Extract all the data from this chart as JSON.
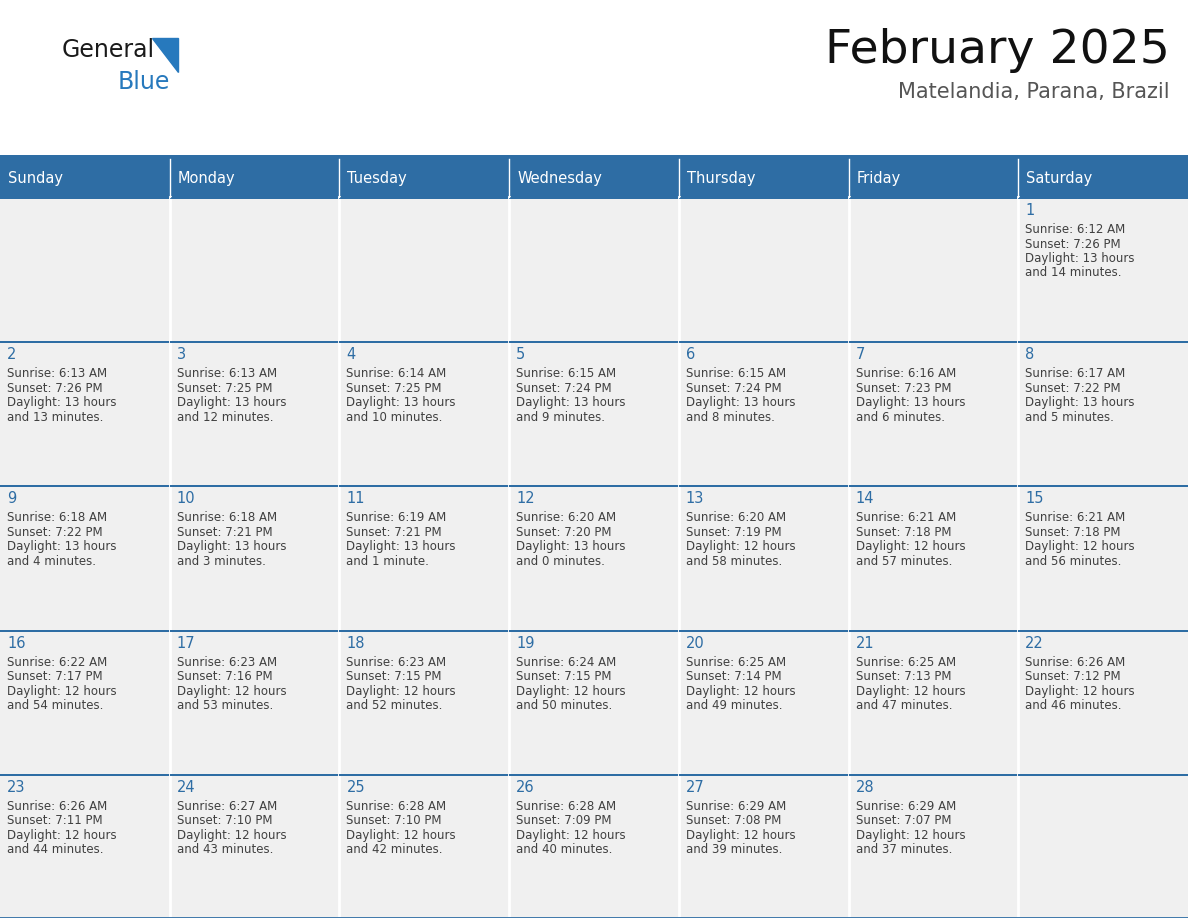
{
  "title": "February 2025",
  "subtitle": "Matelandia, Parana, Brazil",
  "header_color": "#2E6DA4",
  "header_text_color": "#FFFFFF",
  "border_color": "#2E6DA4",
  "day_names": [
    "Sunday",
    "Monday",
    "Tuesday",
    "Wednesday",
    "Thursday",
    "Friday",
    "Saturday"
  ],
  "bg_color": "#FFFFFF",
  "cell_bg": "#F0F0F0",
  "day_num_color": "#2E6DA4",
  "text_color": "#404040",
  "logo_general_color": "#1A1A1A",
  "logo_blue_color": "#2779BD",
  "weeks": [
    [
      null,
      null,
      null,
      null,
      null,
      null,
      1
    ],
    [
      2,
      3,
      4,
      5,
      6,
      7,
      8
    ],
    [
      9,
      10,
      11,
      12,
      13,
      14,
      15
    ],
    [
      16,
      17,
      18,
      19,
      20,
      21,
      22
    ],
    [
      23,
      24,
      25,
      26,
      27,
      28,
      null
    ]
  ],
  "day_data": {
    "1": {
      "sunrise": "6:12 AM",
      "sunset": "7:26 PM",
      "daylight_l1": "Daylight: 13 hours",
      "daylight_l2": "and 14 minutes."
    },
    "2": {
      "sunrise": "6:13 AM",
      "sunset": "7:26 PM",
      "daylight_l1": "Daylight: 13 hours",
      "daylight_l2": "and 13 minutes."
    },
    "3": {
      "sunrise": "6:13 AM",
      "sunset": "7:25 PM",
      "daylight_l1": "Daylight: 13 hours",
      "daylight_l2": "and 12 minutes."
    },
    "4": {
      "sunrise": "6:14 AM",
      "sunset": "7:25 PM",
      "daylight_l1": "Daylight: 13 hours",
      "daylight_l2": "and 10 minutes."
    },
    "5": {
      "sunrise": "6:15 AM",
      "sunset": "7:24 PM",
      "daylight_l1": "Daylight: 13 hours",
      "daylight_l2": "and 9 minutes."
    },
    "6": {
      "sunrise": "6:15 AM",
      "sunset": "7:24 PM",
      "daylight_l1": "Daylight: 13 hours",
      "daylight_l2": "and 8 minutes."
    },
    "7": {
      "sunrise": "6:16 AM",
      "sunset": "7:23 PM",
      "daylight_l1": "Daylight: 13 hours",
      "daylight_l2": "and 6 minutes."
    },
    "8": {
      "sunrise": "6:17 AM",
      "sunset": "7:22 PM",
      "daylight_l1": "Daylight: 13 hours",
      "daylight_l2": "and 5 minutes."
    },
    "9": {
      "sunrise": "6:18 AM",
      "sunset": "7:22 PM",
      "daylight_l1": "Daylight: 13 hours",
      "daylight_l2": "and 4 minutes."
    },
    "10": {
      "sunrise": "6:18 AM",
      "sunset": "7:21 PM",
      "daylight_l1": "Daylight: 13 hours",
      "daylight_l2": "and 3 minutes."
    },
    "11": {
      "sunrise": "6:19 AM",
      "sunset": "7:21 PM",
      "daylight_l1": "Daylight: 13 hours",
      "daylight_l2": "and 1 minute."
    },
    "12": {
      "sunrise": "6:20 AM",
      "sunset": "7:20 PM",
      "daylight_l1": "Daylight: 13 hours",
      "daylight_l2": "and 0 minutes."
    },
    "13": {
      "sunrise": "6:20 AM",
      "sunset": "7:19 PM",
      "daylight_l1": "Daylight: 12 hours",
      "daylight_l2": "and 58 minutes."
    },
    "14": {
      "sunrise": "6:21 AM",
      "sunset": "7:18 PM",
      "daylight_l1": "Daylight: 12 hours",
      "daylight_l2": "and 57 minutes."
    },
    "15": {
      "sunrise": "6:21 AM",
      "sunset": "7:18 PM",
      "daylight_l1": "Daylight: 12 hours",
      "daylight_l2": "and 56 minutes."
    },
    "16": {
      "sunrise": "6:22 AM",
      "sunset": "7:17 PM",
      "daylight_l1": "Daylight: 12 hours",
      "daylight_l2": "and 54 minutes."
    },
    "17": {
      "sunrise": "6:23 AM",
      "sunset": "7:16 PM",
      "daylight_l1": "Daylight: 12 hours",
      "daylight_l2": "and 53 minutes."
    },
    "18": {
      "sunrise": "6:23 AM",
      "sunset": "7:15 PM",
      "daylight_l1": "Daylight: 12 hours",
      "daylight_l2": "and 52 minutes."
    },
    "19": {
      "sunrise": "6:24 AM",
      "sunset": "7:15 PM",
      "daylight_l1": "Daylight: 12 hours",
      "daylight_l2": "and 50 minutes."
    },
    "20": {
      "sunrise": "6:25 AM",
      "sunset": "7:14 PM",
      "daylight_l1": "Daylight: 12 hours",
      "daylight_l2": "and 49 minutes."
    },
    "21": {
      "sunrise": "6:25 AM",
      "sunset": "7:13 PM",
      "daylight_l1": "Daylight: 12 hours",
      "daylight_l2": "and 47 minutes."
    },
    "22": {
      "sunrise": "6:26 AM",
      "sunset": "7:12 PM",
      "daylight_l1": "Daylight: 12 hours",
      "daylight_l2": "and 46 minutes."
    },
    "23": {
      "sunrise": "6:26 AM",
      "sunset": "7:11 PM",
      "daylight_l1": "Daylight: 12 hours",
      "daylight_l2": "and 44 minutes."
    },
    "24": {
      "sunrise": "6:27 AM",
      "sunset": "7:10 PM",
      "daylight_l1": "Daylight: 12 hours",
      "daylight_l2": "and 43 minutes."
    },
    "25": {
      "sunrise": "6:28 AM",
      "sunset": "7:10 PM",
      "daylight_l1": "Daylight: 12 hours",
      "daylight_l2": "and 42 minutes."
    },
    "26": {
      "sunrise": "6:28 AM",
      "sunset": "7:09 PM",
      "daylight_l1": "Daylight: 12 hours",
      "daylight_l2": "and 40 minutes."
    },
    "27": {
      "sunrise": "6:29 AM",
      "sunset": "7:08 PM",
      "daylight_l1": "Daylight: 12 hours",
      "daylight_l2": "and 39 minutes."
    },
    "28": {
      "sunrise": "6:29 AM",
      "sunset": "7:07 PM",
      "daylight_l1": "Daylight: 12 hours",
      "daylight_l2": "and 37 minutes."
    }
  }
}
